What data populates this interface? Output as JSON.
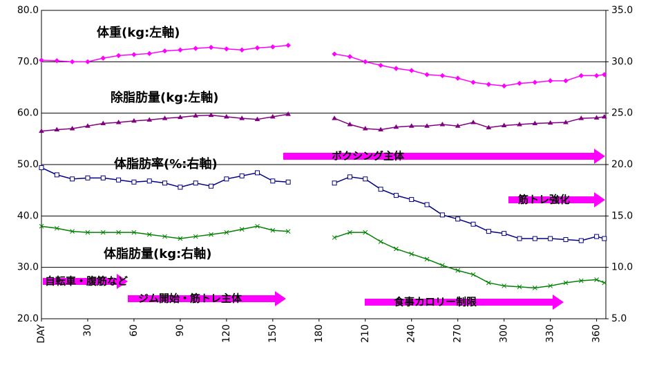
{
  "chart_data": {
    "type": "line",
    "x": [
      0,
      10,
      20,
      30,
      40,
      50,
      60,
      70,
      80,
      90,
      100,
      110,
      120,
      130,
      140,
      150,
      160,
      170,
      180,
      190,
      200,
      210,
      220,
      230,
      240,
      250,
      260,
      270,
      280,
      290,
      300,
      310,
      320,
      330,
      340,
      350,
      360,
      365
    ],
    "xlim": [
      0,
      366
    ],
    "xticks": [
      {
        "value": 0,
        "label": "DAY"
      },
      30,
      60,
      90,
      120,
      150,
      180,
      210,
      240,
      270,
      300,
      330,
      360
    ],
    "ylim": [
      20,
      80
    ],
    "yticks": [
      {
        "value": 20,
        "label": "20.0"
      },
      {
        "value": 30,
        "label": "30.0"
      },
      {
        "value": 40,
        "label": "40.0"
      },
      {
        "value": 50,
        "label": "50.0"
      },
      {
        "value": 60,
        "label": "60.0"
      },
      {
        "value": 70,
        "label": "70.0"
      },
      {
        "value": 80,
        "label": "80.0"
      }
    ],
    "y2lim": [
      5,
      35
    ],
    "y2ticks": [
      {
        "value": 5,
        "label": "5.0"
      },
      {
        "value": 10,
        "label": "10.0"
      },
      {
        "value": 15,
        "label": "15.0"
      },
      {
        "value": 20,
        "label": "20.0"
      },
      {
        "value": 25,
        "label": "25.0"
      },
      {
        "value": 30,
        "label": "30.0"
      },
      {
        "value": 35,
        "label": "35.0"
      }
    ],
    "grid": true,
    "series": [
      {
        "name": "体重(kg:左軸)",
        "color": "#ff00ff",
        "marker": "diamond",
        "values": [
          70.3,
          70.2,
          70.0,
          70.0,
          70.7,
          71.2,
          71.4,
          71.6,
          72.1,
          72.3,
          72.6,
          72.8,
          72.5,
          72.3,
          72.7,
          72.9,
          73.2,
          null,
          null,
          71.5,
          71.0,
          70.0,
          69.3,
          68.7,
          68.3,
          67.5,
          67.3,
          66.8,
          66.0,
          65.6,
          65.3,
          65.8,
          66.0,
          66.3,
          66.3,
          67.3,
          67.3,
          67.5
        ]
      },
      {
        "name": "除脂肪量(kg:左軸)",
        "color": "#800080",
        "marker": "triangle",
        "values": [
          56.5,
          56.8,
          57.0,
          57.5,
          58.0,
          58.2,
          58.5,
          58.7,
          59.0,
          59.2,
          59.5,
          59.6,
          59.3,
          59.0,
          58.8,
          59.3,
          59.8,
          null,
          null,
          59.0,
          57.8,
          57.0,
          56.8,
          57.3,
          57.5,
          57.5,
          57.8,
          57.5,
          58.2,
          57.2,
          57.6,
          57.8,
          58.0,
          58.1,
          58.2,
          59.0,
          59.1,
          59.3
        ]
      },
      {
        "name": "体脂肪率(%:右軸)",
        "color": "#000080",
        "marker": "square",
        "axis": "y2",
        "values": [
          19.7,
          19.0,
          18.6,
          18.7,
          18.7,
          18.5,
          18.3,
          18.4,
          18.2,
          17.8,
          18.2,
          17.9,
          18.6,
          18.9,
          19.2,
          18.4,
          18.3,
          null,
          null,
          18.2,
          18.8,
          18.6,
          17.6,
          17.0,
          16.6,
          16.1,
          15.1,
          14.7,
          14.2,
          13.5,
          13.3,
          12.8,
          12.8,
          12.8,
          12.7,
          12.6,
          13.0,
          12.8
        ]
      },
      {
        "name": "体脂肪量(kg:右軸)",
        "color": "#008000",
        "marker": "x",
        "axis": "y2",
        "values": [
          14.0,
          13.8,
          13.5,
          13.4,
          13.4,
          13.4,
          13.4,
          13.2,
          13.0,
          12.8,
          13.0,
          13.2,
          13.4,
          13.7,
          14.0,
          13.6,
          13.5,
          null,
          null,
          12.9,
          13.4,
          13.4,
          12.5,
          11.8,
          11.3,
          10.8,
          10.2,
          9.7,
          9.3,
          8.5,
          8.2,
          8.1,
          8.0,
          8.2,
          8.5,
          8.7,
          8.8,
          8.5
        ]
      }
    ],
    "annotations": [
      "自転車・腹筋など",
      "ジム開始・筋トレ主体",
      "ボクシング主体",
      "筋トレ強化",
      "食事カロリー制限"
    ],
    "annotation_color": "#ff00ff"
  }
}
